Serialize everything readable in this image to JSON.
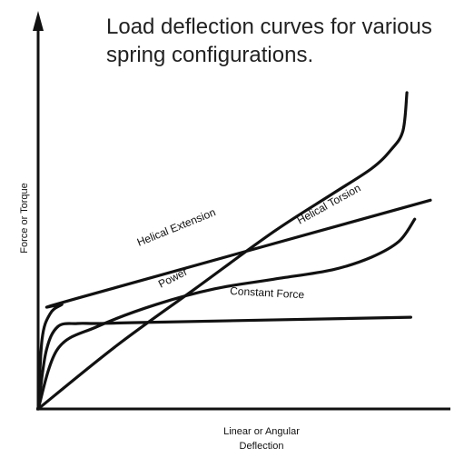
{
  "chart_data": {
    "type": "line",
    "title": "Load deflection curves for various spring configurations.",
    "xlabel_lines": [
      "Linear or Angular",
      "Deflection"
    ],
    "ylabel": "Force or Torque",
    "series": [
      {
        "name": "Helical Extension",
        "x": [
          0,
          1,
          3,
          6,
          10,
          100
        ],
        "y": [
          0,
          22,
          30,
          33,
          35,
          66
        ]
      },
      {
        "name": "Helical Torsion",
        "x": [
          0,
          20,
          40,
          60,
          75,
          85,
          90,
          93,
          94
        ],
        "y": [
          0,
          20,
          38,
          56,
          68,
          76,
          82,
          88,
          100
        ]
      },
      {
        "name": "Power",
        "x": [
          0,
          5,
          15,
          30,
          45,
          60,
          75,
          85,
          92,
          96
        ],
        "y": [
          0,
          19,
          26,
          33,
          38,
          41,
          44,
          48,
          53,
          60
        ]
      },
      {
        "name": "Constant Force",
        "x": [
          0,
          2,
          5,
          10,
          15,
          25,
          95
        ],
        "y": [
          0,
          18,
          26,
          27,
          27,
          27.3,
          29
        ]
      }
    ],
    "xlim": [
      0,
      100
    ],
    "ylim": [
      0,
      100
    ],
    "grid": false,
    "legend": "inline"
  }
}
